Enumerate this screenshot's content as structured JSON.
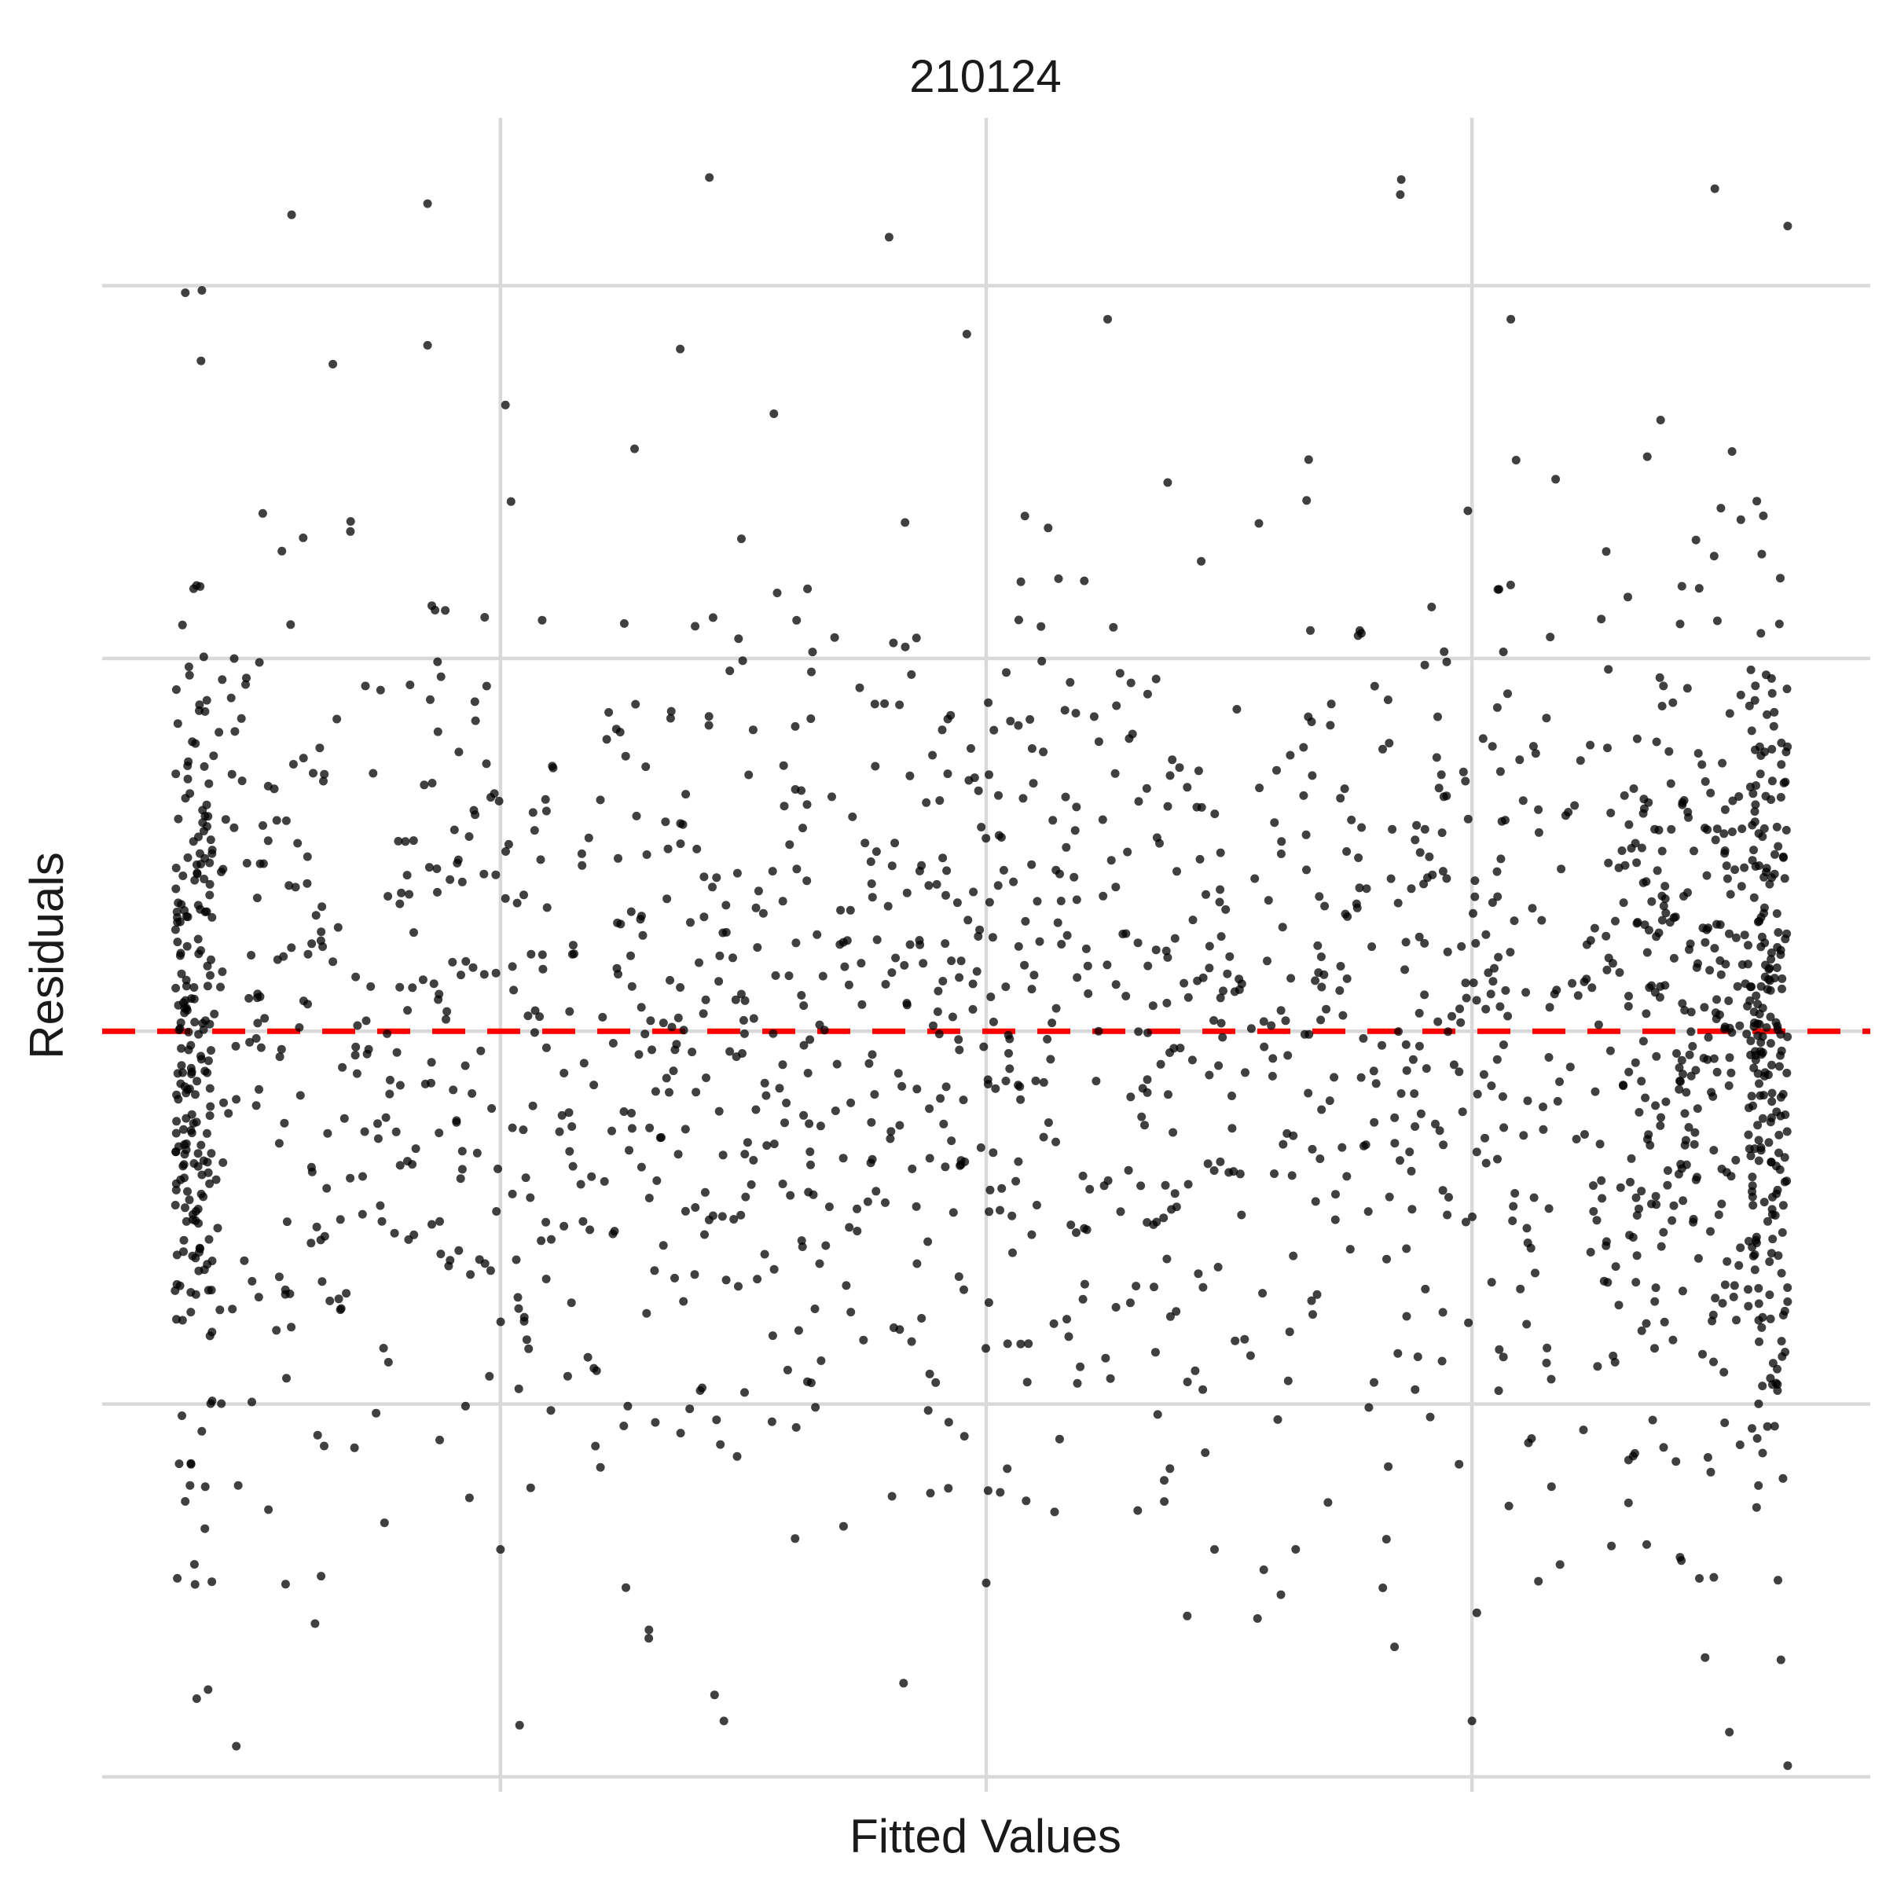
{
  "chart_data": {
    "type": "scatter",
    "title": "210124",
    "xlabel": "Fitted Values",
    "ylabel": "Residuals",
    "xlim": [
      -0.82,
      2.82
    ],
    "ylim": [
      -2.04,
      2.45
    ],
    "grid": true,
    "x_gridlines": [
      0,
      1,
      2
    ],
    "y_gridlines": [
      -2,
      -1,
      0,
      1,
      2
    ],
    "tick_labels_shown": false,
    "reference_line": {
      "y": 0,
      "style": "dashed",
      "color": "#ff0000"
    },
    "point_color": "#000000",
    "n_points_approx": 2000,
    "x_range": [
      -0.67,
      2.65
    ],
    "notable_points": [
      {
        "x": -0.43,
        "y": 2.19
      },
      {
        "x": -0.15,
        "y": 2.22
      },
      {
        "x": 0.43,
        "y": 2.29
      },
      {
        "x": 0.8,
        "y": 2.13
      },
      {
        "x": 0.96,
        "y": 1.87
      },
      {
        "x": 2.5,
        "y": 2.26
      },
      {
        "x": 2.65,
        "y": 2.16
      },
      {
        "x": -0.15,
        "y": 1.84
      },
      {
        "x": 0.37,
        "y": 1.83
      },
      {
        "x": 1.25,
        "y": 1.91
      },
      {
        "x": 2.08,
        "y": 1.91
      },
      {
        "x": -0.63,
        "y": -1.43
      },
      {
        "x": 0.46,
        "y": -1.85
      },
      {
        "x": 2.0,
        "y": -1.85
      },
      {
        "x": 2.53,
        "y": -1.88
      },
      {
        "x": 2.65,
        "y": -1.97
      },
      {
        "x": 2.01,
        "y": -1.56
      },
      {
        "x": 2.48,
        "y": -1.68
      },
      {
        "x": 1.0,
        "y": -1.48
      },
      {
        "x": 0.0,
        "y": -1.39
      },
      {
        "x": 1.47,
        "y": -1.39
      }
    ]
  }
}
